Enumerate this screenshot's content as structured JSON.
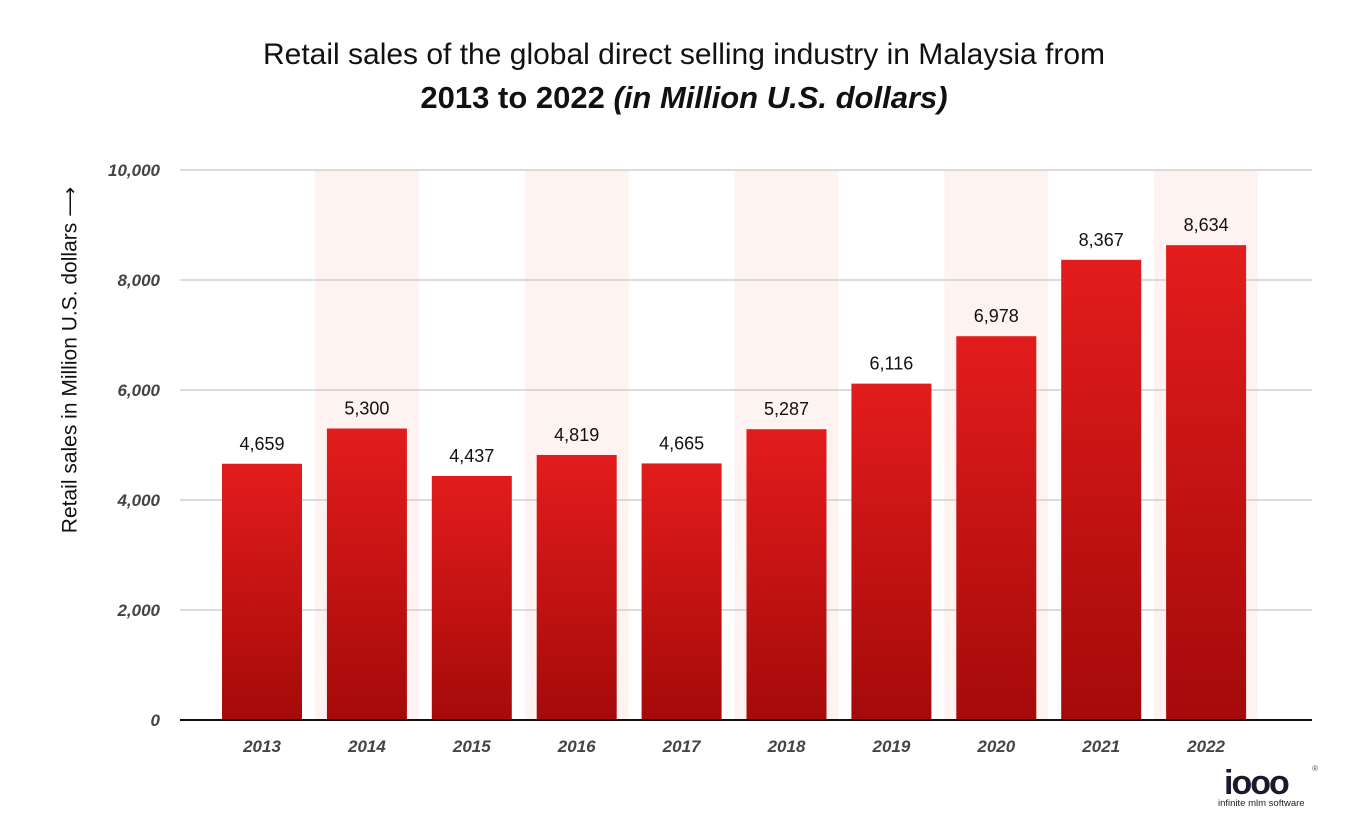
{
  "title": {
    "line1": "Retail sales of the global direct selling industry in Malaysia from",
    "line2_bold": "2013 to 2022 ",
    "line2_italic": "(in Million U.S. dollars)"
  },
  "logo": {
    "mark": "iooo",
    "tagline": "infinite mlm software",
    "registered": "®"
  },
  "colors": {
    "bar_top": "#e31c1c",
    "bar_bottom": "#a50a0a",
    "band": "#fff3f2",
    "grid": "#c8c8c8",
    "axis": "#111111",
    "tick_text": "#444444"
  },
  "chart_data": {
    "type": "bar",
    "categories": [
      "2013",
      "2014",
      "2015",
      "2016",
      "2017",
      "2018",
      "2019",
      "2020",
      "2021",
      "2022"
    ],
    "values": [
      4659,
      5300,
      4437,
      4819,
      4665,
      5287,
      6116,
      6978,
      8367,
      8634
    ],
    "value_labels": [
      "4,659",
      "5,300",
      "4,437",
      "4,819",
      "4,665",
      "5,287",
      "6,116",
      "6,978",
      "8,367",
      "8,634"
    ],
    "ylabel": "Retail sales in Million U.S. dollars",
    "xlabel": "",
    "ylim": [
      0,
      10000
    ],
    "yticks": [
      0,
      2000,
      4000,
      6000,
      8000,
      10000
    ],
    "ytick_labels": [
      "0",
      "2,000",
      "4,000",
      "6,000",
      "8,000",
      "10,000"
    ],
    "grid": true,
    "legend": "none"
  }
}
